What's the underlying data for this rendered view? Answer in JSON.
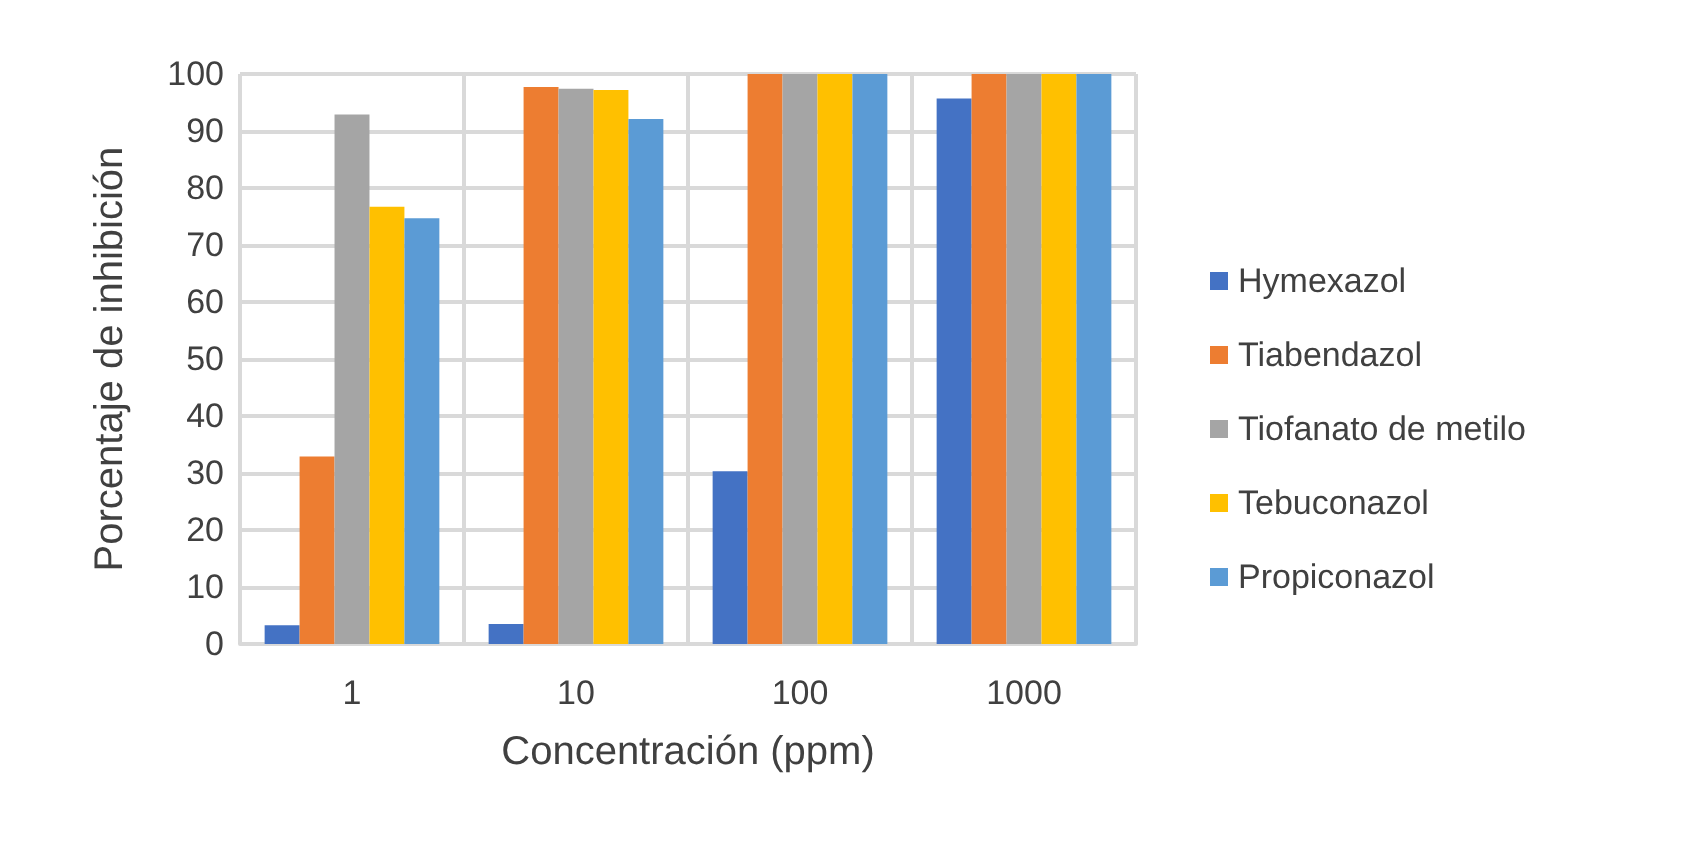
{
  "chart_data": {
    "type": "bar",
    "xlabel": "Concentración (ppm)",
    "ylabel": "Porcentaje de inhibición",
    "categories": [
      "1",
      "10",
      "100",
      "1000"
    ],
    "series": [
      {
        "name": "Hymexazol",
        "color": "#4472c4",
        "values": [
          3.3,
          3.5,
          30.3,
          95.7
        ]
      },
      {
        "name": "Tiabendazol",
        "color": "#ed7d31",
        "values": [
          32.9,
          97.7,
          100,
          100
        ]
      },
      {
        "name": "Tiofanato de metilo",
        "color": "#a5a5a5",
        "values": [
          92.9,
          97.4,
          100,
          100
        ]
      },
      {
        "name": "Tebuconazol",
        "color": "#ffc000",
        "values": [
          76.7,
          97.2,
          100,
          100
        ]
      },
      {
        "name": "Propiconazol",
        "color": "#5b9bd5",
        "values": [
          74.7,
          92.1,
          100,
          100
        ]
      }
    ],
    "ylim": [
      0,
      100
    ],
    "yticks": [
      0,
      10,
      20,
      30,
      40,
      50,
      60,
      70,
      80,
      90,
      100
    ],
    "grid": true,
    "legend": "right"
  }
}
